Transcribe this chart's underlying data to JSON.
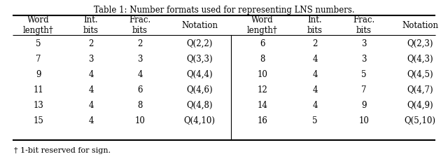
{
  "title": "Table 1: Number formats used for representing LNS numbers.",
  "col_headers_left": [
    "Word\nlength†",
    "Int.\nbits",
    "Frac.\nbits",
    "Notation"
  ],
  "col_headers_right": [
    "Word\nlength†",
    "Int.\nbits",
    "Frac.\nbits",
    "Notation"
  ],
  "left_rows": [
    [
      "5",
      "2",
      "2",
      "Q(2,2)"
    ],
    [
      "7",
      "3",
      "3",
      "Q(3,3)"
    ],
    [
      "9",
      "4",
      "4",
      "Q(4,4)"
    ],
    [
      "11",
      "4",
      "6",
      "Q(4,6)"
    ],
    [
      "13",
      "4",
      "8",
      "Q(4,8)"
    ],
    [
      "15",
      "4",
      "10",
      "Q(4,10)"
    ]
  ],
  "right_rows": [
    [
      "6",
      "2",
      "3",
      "Q(2,3)"
    ],
    [
      "8",
      "4",
      "3",
      "Q(4,3)"
    ],
    [
      "10",
      "4",
      "5",
      "Q(4,5)"
    ],
    [
      "12",
      "4",
      "7",
      "Q(4,7)"
    ],
    [
      "14",
      "4",
      "9",
      "Q(4,9)"
    ],
    [
      "16",
      "5",
      "10",
      "Q(5,10)"
    ]
  ],
  "footnote": "† 1-bit reserved for sign.",
  "bg_color": "#ffffff",
  "text_color": "#000000",
  "fontsize": 8.5,
  "title_fontsize": 8.5
}
